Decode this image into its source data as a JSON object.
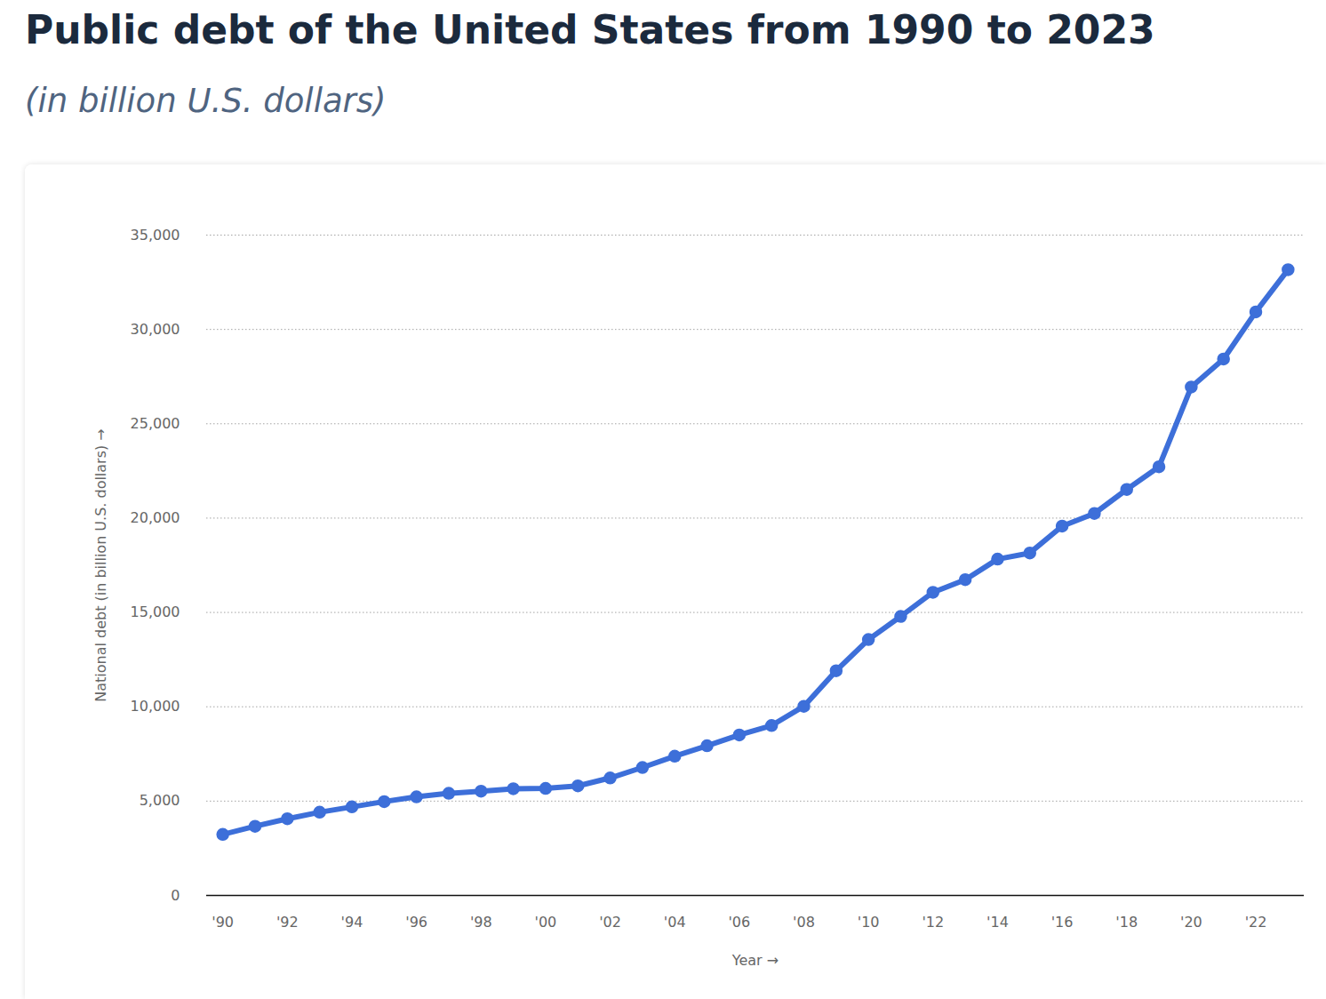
{
  "chart_data": {
    "type": "line",
    "title": "Public debt of the United States from 1990 to 2023",
    "subtitle": "(in billion U.S. dollars)",
    "x_label": "Year",
    "y_label": "National debt (in billion U.S. dollars)",
    "x": [
      1990,
      1991,
      1992,
      1993,
      1994,
      1995,
      1996,
      1997,
      1998,
      1999,
      2000,
      2001,
      2002,
      2003,
      2004,
      2005,
      2006,
      2007,
      2008,
      2009,
      2010,
      2011,
      2012,
      2013,
      2014,
      2015,
      2016,
      2017,
      2018,
      2019,
      2020,
      2021,
      2022,
      2023
    ],
    "values": [
      3233,
      3665,
      4065,
      4411,
      4693,
      4974,
      5225,
      5413,
      5526,
      5656,
      5674,
      5807,
      6228,
      6783,
      7379,
      7933,
      8507,
      9008,
      10025,
      11910,
      13562,
      14790,
      16066,
      16738,
      17824,
      18151,
      19573,
      20245,
      21516,
      22719,
      26945,
      28429,
      30929,
      33167
    ],
    "color": "#3d6fd9",
    "marker": "circle",
    "xlim": [
      1989.5,
      2023.5
    ],
    "xticks": [
      {
        "value": 1990,
        "label": "'90"
      },
      {
        "value": 1992,
        "label": "'92"
      },
      {
        "value": 1994,
        "label": "'94"
      },
      {
        "value": 1996,
        "label": "'96"
      },
      {
        "value": 1998,
        "label": "'98"
      },
      {
        "value": 2000,
        "label": "'00"
      },
      {
        "value": 2002,
        "label": "'02"
      },
      {
        "value": 2004,
        "label": "'04"
      },
      {
        "value": 2006,
        "label": "'06"
      },
      {
        "value": 2008,
        "label": "'08"
      },
      {
        "value": 2010,
        "label": "'10"
      },
      {
        "value": 2012,
        "label": "'12"
      },
      {
        "value": 2014,
        "label": "'14"
      },
      {
        "value": 2016,
        "label": "'16"
      },
      {
        "value": 2018,
        "label": "'18"
      },
      {
        "value": 2020,
        "label": "'20"
      },
      {
        "value": 2022,
        "label": "'22"
      }
    ],
    "ylim": [
      0,
      35000
    ],
    "yticks": [
      0,
      {
        "value": 5000,
        "label": "5,000"
      },
      {
        "value": 10000,
        "label": "10,000"
      },
      {
        "value": 15000,
        "label": "15,000"
      },
      {
        "value": 20000,
        "label": "20,000"
      },
      {
        "value": 25000,
        "label": "25,000"
      },
      {
        "value": 30000,
        "label": "30,000"
      },
      {
        "value": 35000,
        "label": "35,000"
      }
    ],
    "grid": true
  }
}
